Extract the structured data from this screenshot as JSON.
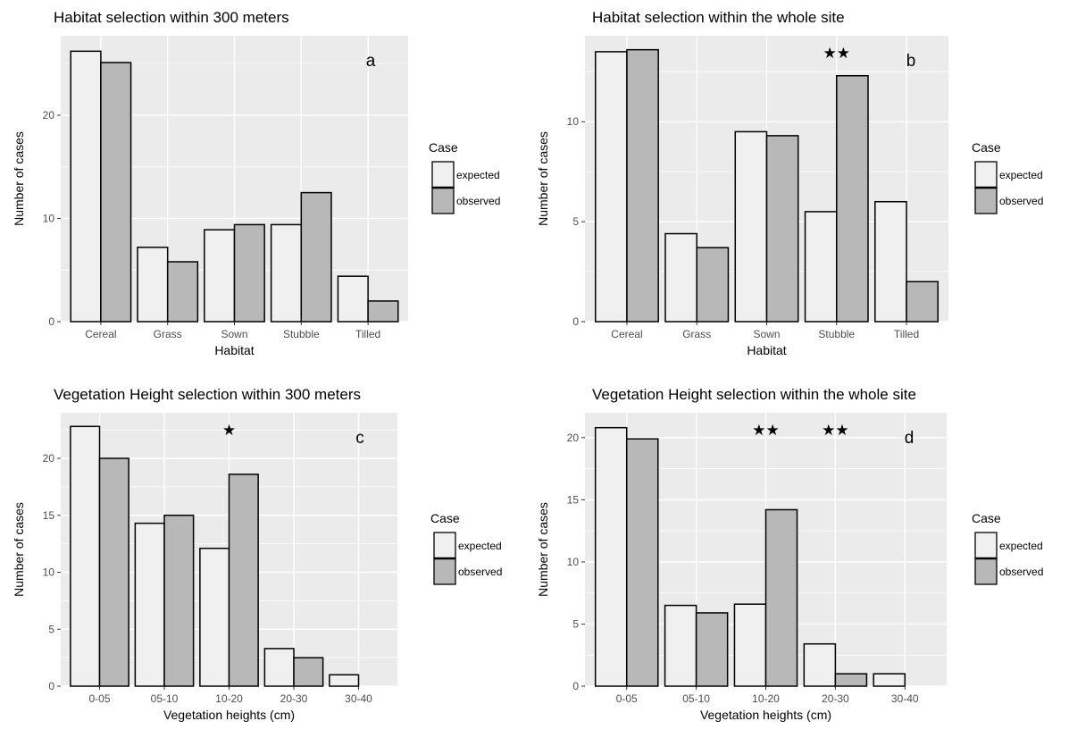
{
  "colors": {
    "panel_bg": "#ebebeb",
    "grid": "#ffffff",
    "expected_fill": "#f0f0f0",
    "observed_fill": "#b8b8b8",
    "bar_stroke": "#000000"
  },
  "legend": {
    "title": "Case",
    "items": [
      "expected",
      "observed"
    ],
    "placement": "right"
  },
  "chart_data": [
    {
      "type": "bar",
      "title": "Habitat selection within 300 meters",
      "tag": "a",
      "xlabel": "Habitat",
      "ylabel": "Number of cases",
      "categories": [
        "Cereal",
        "Grass",
        "Sown",
        "Stubble",
        "Tilled"
      ],
      "series": [
        {
          "name": "expected",
          "values": [
            26.2,
            7.2,
            8.9,
            9.4,
            4.4
          ]
        },
        {
          "name": "observed",
          "values": [
            25.1,
            5.8,
            9.4,
            12.5,
            2.0
          ]
        }
      ],
      "ylim": [
        0,
        27.7
      ],
      "yticks": [
        0,
        10,
        20
      ],
      "significance": []
    },
    {
      "type": "bar",
      "title": "Habitat selection within the whole site",
      "tag": "b",
      "xlabel": "Habitat",
      "ylabel": "Number of cases",
      "categories": [
        "Cereal",
        "Grass",
        "Sown",
        "Stubble",
        "Tilled"
      ],
      "series": [
        {
          "name": "expected",
          "values": [
            13.5,
            4.4,
            9.5,
            5.5,
            6.0
          ]
        },
        {
          "name": "observed",
          "values": [
            13.6,
            3.7,
            9.3,
            12.3,
            2.0
          ]
        }
      ],
      "ylim": [
        0,
        14.3
      ],
      "yticks": [
        0,
        5,
        10
      ],
      "significance": [
        {
          "category": "Stubble",
          "label": "★★"
        }
      ]
    },
    {
      "type": "bar",
      "title": "Vegetation Height selection within 300 meters",
      "tag": "c",
      "xlabel": "Vegetation heights (cm)",
      "ylabel": "Number of cases",
      "categories": [
        "0-05",
        "05-10",
        "10-20",
        "20-30",
        "30-40"
      ],
      "series": [
        {
          "name": "expected",
          "values": [
            22.8,
            14.3,
            12.1,
            3.3,
            1.0
          ]
        },
        {
          "name": "observed",
          "values": [
            20.0,
            15.0,
            18.6,
            2.5,
            0
          ]
        }
      ],
      "ylim": [
        0,
        24.0
      ],
      "yticks": [
        0,
        5,
        10,
        15,
        20
      ],
      "significance": [
        {
          "category": "10-20",
          "label": "★"
        }
      ]
    },
    {
      "type": "bar",
      "title": "Vegetation Height selection within the whole site",
      "tag": "d",
      "xlabel": "Vegetation heights (cm)",
      "ylabel": "Number of cases",
      "categories": [
        "0-05",
        "05-10",
        "10-20",
        "20-30",
        "30-40"
      ],
      "series": [
        {
          "name": "expected",
          "values": [
            20.8,
            6.5,
            6.6,
            3.4,
            1.0
          ]
        },
        {
          "name": "observed",
          "values": [
            19.9,
            5.9,
            14.2,
            1.0,
            0
          ]
        }
      ],
      "ylim": [
        0,
        22.0
      ],
      "yticks": [
        0,
        5,
        10,
        15,
        20
      ],
      "significance": [
        {
          "category": "10-20",
          "label": "★★"
        },
        {
          "category": "20-30",
          "label": "★★"
        }
      ]
    }
  ]
}
